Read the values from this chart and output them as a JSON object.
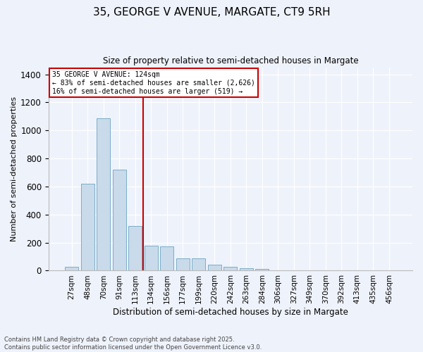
{
  "title_line1": "35, GEORGE V AVENUE, MARGATE, CT9 5RH",
  "title_line2": "Size of property relative to semi-detached houses in Margate",
  "xlabel": "Distribution of semi-detached houses by size in Margate",
  "ylabel": "Number of semi-detached properties",
  "categories": [
    "27sqm",
    "48sqm",
    "70sqm",
    "91sqm",
    "113sqm",
    "134sqm",
    "156sqm",
    "177sqm",
    "199sqm",
    "220sqm",
    "242sqm",
    "263sqm",
    "284sqm",
    "306sqm",
    "327sqm",
    "349sqm",
    "370sqm",
    "392sqm",
    "413sqm",
    "435sqm",
    "456sqm"
  ],
  "values": [
    27,
    618,
    1085,
    718,
    320,
    180,
    175,
    90,
    88,
    42,
    25,
    17,
    13,
    0,
    0,
    0,
    0,
    0,
    0,
    0,
    0
  ],
  "bar_color": "#c9daea",
  "bar_edge_color": "#7aaec8",
  "vline_x_index": 4.5,
  "vline_color": "#cc0000",
  "annotation_title": "35 GEORGE V AVENUE: 124sqm",
  "annotation_line2": "← 83% of semi-detached houses are smaller (2,626)",
  "annotation_line3": "16% of semi-detached houses are larger (519) →",
  "annotation_box_color": "#cc0000",
  "ylim": [
    0,
    1450
  ],
  "background_color": "#eef2fb",
  "plot_bg_color": "#eef2fb",
  "footer_line1": "Contains HM Land Registry data © Crown copyright and database right 2025.",
  "footer_line2": "Contains public sector information licensed under the Open Government Licence v3.0."
}
